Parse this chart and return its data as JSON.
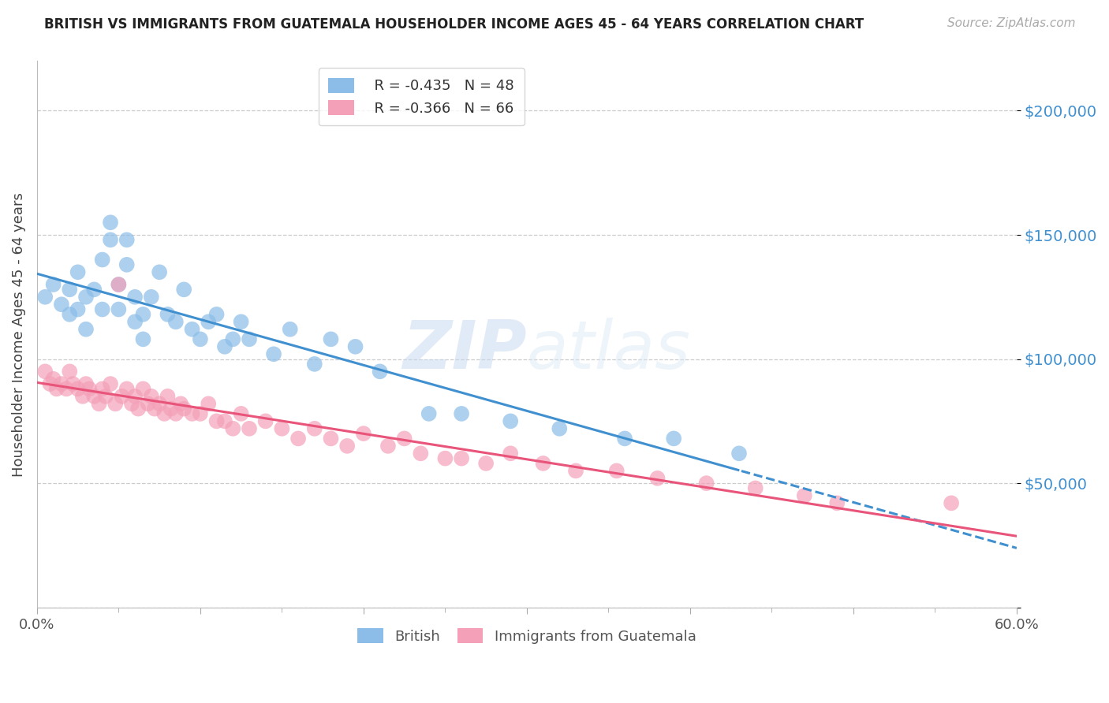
{
  "title": "BRITISH VS IMMIGRANTS FROM GUATEMALA HOUSEHOLDER INCOME AGES 45 - 64 YEARS CORRELATION CHART",
  "source": "Source: ZipAtlas.com",
  "ylabel": "Householder Income Ages 45 - 64 years",
  "xlim": [
    0.0,
    0.6
  ],
  "ylim": [
    0,
    220000
  ],
  "yticks": [
    0,
    50000,
    100000,
    150000,
    200000
  ],
  "ytick_labels": [
    "",
    "$50,000",
    "$100,000",
    "$150,000",
    "$200,000"
  ],
  "xticks": [
    0.0,
    0.1,
    0.2,
    0.3,
    0.4,
    0.5,
    0.6
  ],
  "xtick_labels": [
    "0.0%",
    "",
    "",
    "",
    "",
    "",
    "60.0%"
  ],
  "british_color": "#8BBDE8",
  "guatemala_color": "#F4A0B8",
  "british_line_color": "#4090D0",
  "guatemala_line_color": "#E8547A",
  "legend_R_british": "R = -0.435",
  "legend_N_british": "N = 48",
  "legend_R_guatemala": "R = -0.366",
  "legend_N_guatemala": "N = 66",
  "watermark_zip": "ZIP",
  "watermark_atlas": "atlas",
  "british_x": [
    0.005,
    0.01,
    0.015,
    0.02,
    0.02,
    0.025,
    0.025,
    0.03,
    0.03,
    0.035,
    0.04,
    0.04,
    0.045,
    0.045,
    0.05,
    0.05,
    0.055,
    0.055,
    0.06,
    0.06,
    0.065,
    0.065,
    0.07,
    0.075,
    0.08,
    0.085,
    0.09,
    0.095,
    0.1,
    0.105,
    0.11,
    0.115,
    0.12,
    0.125,
    0.13,
    0.145,
    0.155,
    0.17,
    0.18,
    0.195,
    0.21,
    0.24,
    0.26,
    0.29,
    0.32,
    0.36,
    0.39,
    0.43
  ],
  "british_y": [
    125000,
    130000,
    122000,
    118000,
    128000,
    135000,
    120000,
    125000,
    112000,
    128000,
    120000,
    140000,
    148000,
    155000,
    130000,
    120000,
    148000,
    138000,
    125000,
    115000,
    118000,
    108000,
    125000,
    135000,
    118000,
    115000,
    128000,
    112000,
    108000,
    115000,
    118000,
    105000,
    108000,
    115000,
    108000,
    102000,
    112000,
    98000,
    108000,
    105000,
    95000,
    78000,
    78000,
    75000,
    72000,
    68000,
    68000,
    62000
  ],
  "guatemala_x": [
    0.005,
    0.008,
    0.01,
    0.012,
    0.015,
    0.018,
    0.02,
    0.022,
    0.025,
    0.028,
    0.03,
    0.032,
    0.035,
    0.038,
    0.04,
    0.042,
    0.045,
    0.048,
    0.05,
    0.052,
    0.055,
    0.058,
    0.06,
    0.062,
    0.065,
    0.068,
    0.07,
    0.072,
    0.075,
    0.078,
    0.08,
    0.082,
    0.085,
    0.088,
    0.09,
    0.095,
    0.1,
    0.105,
    0.11,
    0.115,
    0.12,
    0.125,
    0.13,
    0.14,
    0.15,
    0.16,
    0.17,
    0.18,
    0.19,
    0.2,
    0.215,
    0.225,
    0.235,
    0.25,
    0.26,
    0.275,
    0.29,
    0.31,
    0.33,
    0.355,
    0.38,
    0.41,
    0.44,
    0.47,
    0.49,
    0.56
  ],
  "guatemala_y": [
    95000,
    90000,
    92000,
    88000,
    90000,
    88000,
    95000,
    90000,
    88000,
    85000,
    90000,
    88000,
    85000,
    82000,
    88000,
    85000,
    90000,
    82000,
    130000,
    85000,
    88000,
    82000,
    85000,
    80000,
    88000,
    82000,
    85000,
    80000,
    82000,
    78000,
    85000,
    80000,
    78000,
    82000,
    80000,
    78000,
    78000,
    82000,
    75000,
    75000,
    72000,
    78000,
    72000,
    75000,
    72000,
    68000,
    72000,
    68000,
    65000,
    70000,
    65000,
    68000,
    62000,
    60000,
    60000,
    58000,
    62000,
    58000,
    55000,
    55000,
    52000,
    50000,
    48000,
    45000,
    42000,
    42000
  ]
}
